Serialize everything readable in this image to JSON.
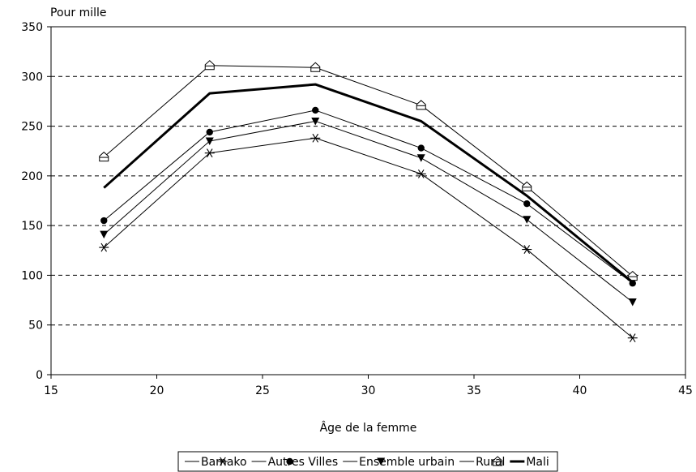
{
  "chart_data": {
    "type": "line",
    "ylabel": "Pour mille",
    "xlabel": "Âge de la femme",
    "xlim": [
      15,
      45
    ],
    "ylim": [
      0,
      350
    ],
    "xticks": [
      15,
      20,
      25,
      30,
      35,
      40,
      45
    ],
    "yticks": [
      0,
      50,
      100,
      150,
      200,
      250,
      300,
      350
    ],
    "grid": "horizontal-dashed",
    "legend_position": "bottom",
    "x": [
      17.5,
      22.5,
      27.5,
      32.5,
      37.5,
      42.5
    ],
    "series": [
      {
        "name": "Bamako",
        "marker": "asterisk",
        "values": [
          128,
          223,
          238,
          202,
          126,
          37
        ]
      },
      {
        "name": "Autres Villes",
        "marker": "circle-filled",
        "values": [
          155,
          244,
          266,
          228,
          172,
          92
        ]
      },
      {
        "name": "Ensemble urbain",
        "marker": "triangle-down-filled",
        "values": [
          141,
          235,
          255,
          218,
          156,
          73
        ]
      },
      {
        "name": "Rural",
        "marker": "house-open",
        "values": [
          219,
          311,
          309,
          271,
          189,
          99
        ]
      },
      {
        "name": "Mali",
        "marker": "none",
        "bold": true,
        "values": [
          188,
          283,
          292,
          255,
          180,
          93
        ]
      }
    ]
  }
}
